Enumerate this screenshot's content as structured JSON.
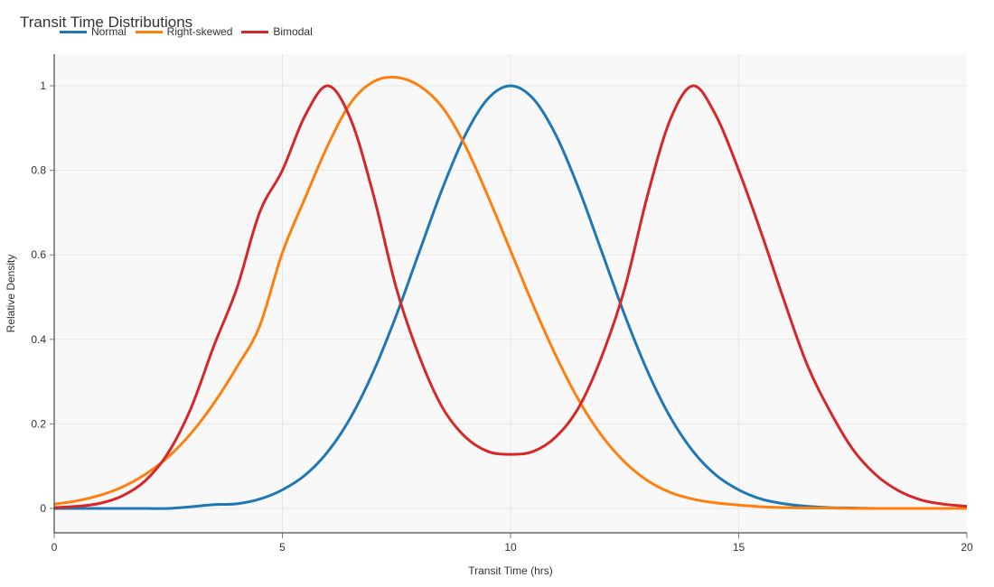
{
  "chart_data": {
    "type": "line",
    "title": "Transit Time Distributions",
    "xlabel": "Transit Time (hrs)",
    "ylabel": "Relative Density",
    "xlim": [
      0,
      20
    ],
    "ylim": [
      -0.057,
      1.075
    ],
    "x_ticks": [
      0,
      5,
      10,
      15,
      20
    ],
    "y_ticks": [
      0,
      0.2,
      0.4,
      0.6,
      0.8,
      1
    ],
    "y_tick_labels": [
      "0",
      "0.2",
      "0.4",
      "0.6",
      "0.8",
      "1"
    ],
    "grid": true,
    "legend_position": "top-left",
    "x": [
      0,
      0.5,
      1,
      1.5,
      2,
      2.5,
      3,
      3.5,
      4,
      4.5,
      5,
      5.5,
      6,
      6.5,
      7,
      7.5,
      8,
      8.5,
      9,
      9.5,
      10,
      10.5,
      11,
      11.5,
      12,
      12.5,
      13,
      13.5,
      14,
      14.5,
      15,
      15.5,
      16,
      16.5,
      17,
      17.5,
      18,
      18.5,
      19,
      19.5,
      20
    ],
    "series": [
      {
        "name": "Normal",
        "color": "#1f77b4",
        "values": [
          0.0,
          0.0,
          0.0,
          0.0,
          0.0,
          0.0,
          0.004,
          0.009,
          0.011,
          0.022,
          0.044,
          0.079,
          0.135,
          0.216,
          0.325,
          0.458,
          0.607,
          0.755,
          0.882,
          0.969,
          1.0,
          0.969,
          0.882,
          0.755,
          0.607,
          0.458,
          0.325,
          0.216,
          0.135,
          0.079,
          0.044,
          0.022,
          0.011,
          0.005,
          0.002,
          0.001,
          0.0,
          0.0,
          0.0,
          0.0,
          0.0
        ]
      },
      {
        "name": "Right-skewed",
        "color": "#ff7f0e",
        "values": [
          0.01,
          0.018,
          0.031,
          0.051,
          0.081,
          0.122,
          0.178,
          0.249,
          0.334,
          0.431,
          0.605,
          0.735,
          0.86,
          0.96,
          1.01,
          1.02,
          1.0,
          0.95,
          0.86,
          0.74,
          0.61,
          0.48,
          0.36,
          0.255,
          0.172,
          0.11,
          0.066,
          0.038,
          0.022,
          0.013,
          0.008,
          0.004,
          0.002,
          0.001,
          0.001,
          0.0,
          0.0,
          0.0,
          0.0,
          0.0,
          0.0
        ]
      },
      {
        "name": "Bimodal",
        "color": "#d62728",
        "values": [
          0.002,
          0.005,
          0.012,
          0.03,
          0.066,
          0.132,
          0.238,
          0.385,
          0.52,
          0.7,
          0.8,
          0.93,
          1.0,
          0.92,
          0.74,
          0.52,
          0.36,
          0.24,
          0.17,
          0.135,
          0.128,
          0.135,
          0.17,
          0.24,
          0.36,
          0.52,
          0.74,
          0.92,
          1.0,
          0.93,
          0.8,
          0.65,
          0.49,
          0.34,
          0.23,
          0.14,
          0.08,
          0.042,
          0.02,
          0.01,
          0.005
        ]
      }
    ]
  }
}
